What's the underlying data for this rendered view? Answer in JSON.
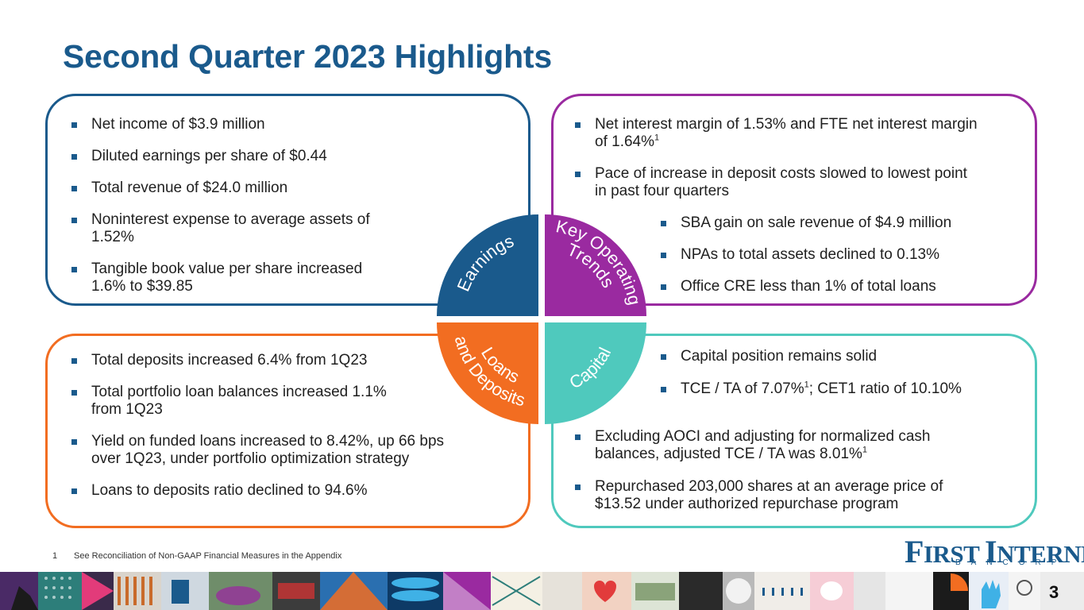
{
  "page": {
    "title": "Second Quarter 2023 Highlights",
    "page_number": "3"
  },
  "earnings": {
    "items": [
      {
        "lines": [
          "Net income of $3.9 million"
        ]
      },
      {
        "lines": [
          "Diluted earnings per share of $0.44"
        ]
      },
      {
        "lines": [
          "Total revenue of $24.0 million"
        ]
      },
      {
        "lines": [
          "Noninterest expense to average assets of",
          "1.52%"
        ]
      },
      {
        "lines": [
          "Tangible book value per share increased",
          "1.6% to $39.85"
        ]
      }
    ]
  },
  "key_trends": {
    "items": [
      {
        "lines": [
          "Net interest margin of 1.53% and FTE net interest margin",
          "of 1.64%"
        ],
        "sup": "1"
      },
      {
        "lines": [
          "Pace of increase in deposit costs slowed to lowest point",
          "in past four quarters"
        ]
      }
    ],
    "items_right": [
      {
        "lines": [
          "SBA gain on sale revenue of $4.9 million"
        ]
      },
      {
        "lines": [
          "NPAs to total assets declined to 0.13%"
        ]
      },
      {
        "lines": [
          "Office CRE less than 1% of total loans"
        ]
      }
    ]
  },
  "loans": {
    "items": [
      {
        "lines": [
          "Total deposits increased 6.4% from 1Q23"
        ]
      },
      {
        "lines": [
          "Total portfolio loan balances increased 1.1%",
          "from 1Q23"
        ]
      },
      {
        "lines": [
          "Yield on funded loans increased to 8.42%, up 66 bps",
          "over 1Q23, under portfolio optimization strategy"
        ]
      },
      {
        "lines": [
          "Loans to deposits ratio declined to 94.6%"
        ]
      }
    ]
  },
  "capital": {
    "items_top": [
      {
        "lines": [
          "Capital position remains solid"
        ]
      },
      {
        "lines": [
          "TCE / TA of 7.07%"
        ],
        "sup": "1",
        "after": "; CET1 ratio of 10.10%"
      }
    ],
    "items_bottom": [
      {
        "lines": [
          "Excluding AOCI and adjusting for normalized cash",
          "balances, adjusted TCE / TA was 8.01%"
        ],
        "sup": "1"
      },
      {
        "lines": [
          "Repurchased 203,000 shares at an average price of",
          "$13.52 under authorized repurchase program"
        ]
      }
    ]
  },
  "wheel": {
    "earnings_label": "Earnings",
    "key_line1": "Key Operating",
    "key_line2": "Trends",
    "loans_line1": "Loans",
    "loans_line2": "and Deposits",
    "capital_label": "Capital",
    "colors": {
      "earnings": "#1a5a8c",
      "key": "#9a2aa0",
      "loans": "#f26d21",
      "capital": "#4fc9bd"
    }
  },
  "footnote": {
    "number": "1",
    "text": "See Reconciliation of Non-GAAP Financial Measures in the Appendix"
  },
  "logo": {
    "first_initial": "F",
    "first_rest": "IRST",
    "second_initial": "I",
    "second_rest": "NTERNET",
    "subline": "BANCORP"
  }
}
